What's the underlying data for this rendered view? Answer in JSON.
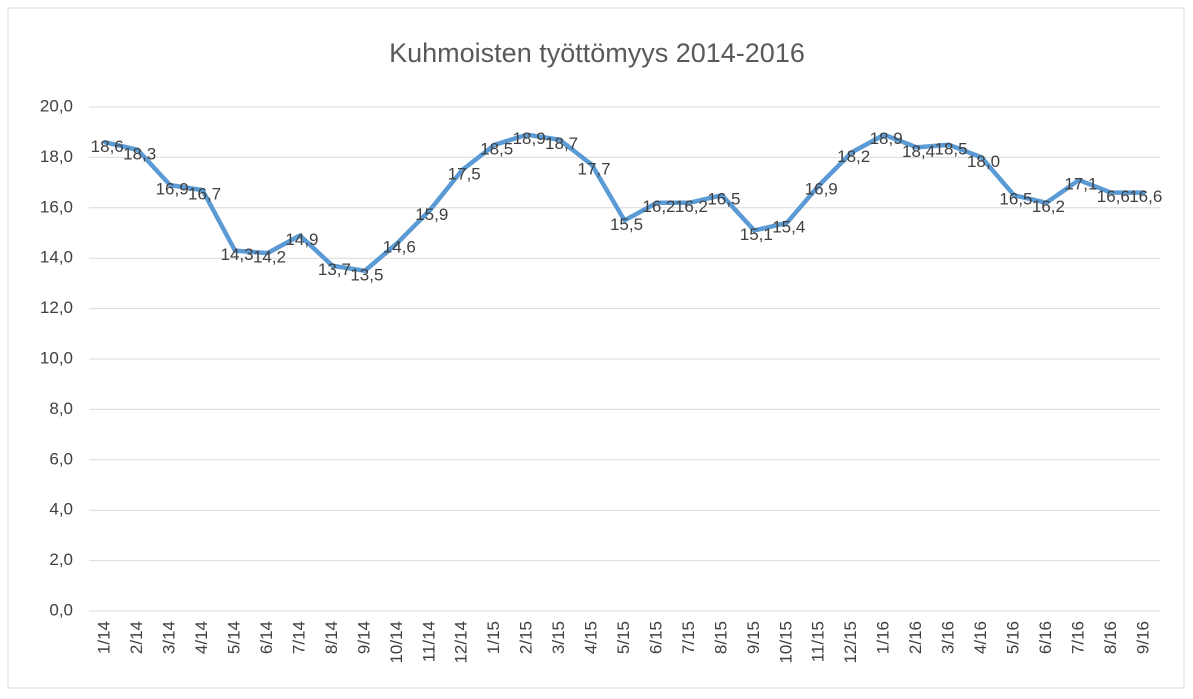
{
  "chart_data": {
    "type": "line",
    "title": "Kuhmoisten työttömyys 2014-2016",
    "categories": [
      "1/14",
      "2/14",
      "3/14",
      "4/14",
      "5/14",
      "6/14",
      "7/14",
      "8/14",
      "9/14",
      "10/14",
      "11/14",
      "12/14",
      "1/15",
      "2/15",
      "3/15",
      "4/15",
      "5/15",
      "6/15",
      "7/15",
      "8/15",
      "9/15",
      "10/15",
      "11/15",
      "12/15",
      "1/16",
      "2/16",
      "3/16",
      "4/16",
      "5/16",
      "6/16",
      "7/16",
      "8/16",
      "9/16"
    ],
    "series": [
      {
        "color": "#5b9bd5",
        "values": [
          18.6,
          18.3,
          16.9,
          16.7,
          14.3,
          14.2,
          14.9,
          13.7,
          13.5,
          14.6,
          15.9,
          17.5,
          18.5,
          18.9,
          18.7,
          17.7,
          15.5,
          16.2,
          16.2,
          16.5,
          15.1,
          15.4,
          16.9,
          18.2,
          18.9,
          18.4,
          18.5,
          18.0,
          16.5,
          16.2,
          17.1,
          16.6,
          16.6
        ],
        "value_labels": [
          "18,6",
          "18,3",
          "16,9",
          "16,7",
          "14,3",
          "14,2",
          "14,9",
          "13,7",
          "13,5",
          "14,6",
          "15,9",
          "17,5",
          "18,5",
          "18,9",
          "18,7",
          "17,7",
          "15,5",
          "16,2",
          "16,2",
          "16,5",
          "15,1",
          "15,4",
          "16,9",
          "18,2",
          "18,9",
          "18,4",
          "18,5",
          "18,0",
          "16,5",
          "16,2",
          "17,1",
          "16,6",
          "16,6"
        ]
      }
    ],
    "ylim": [
      0,
      20
    ],
    "yticks": [
      {
        "value": 0,
        "label": "0,0"
      },
      {
        "value": 2,
        "label": "2,0"
      },
      {
        "value": 4,
        "label": "4,0"
      },
      {
        "value": 6,
        "label": "6,0"
      },
      {
        "value": 8,
        "label": "8,0"
      },
      {
        "value": 10,
        "label": "10,0"
      },
      {
        "value": 12,
        "label": "12,0"
      },
      {
        "value": 14,
        "label": "14,0"
      },
      {
        "value": 16,
        "label": "16,0"
      },
      {
        "value": 18,
        "label": "18,0"
      },
      {
        "value": 20,
        "label": "20,0"
      }
    ],
    "grid": true
  }
}
